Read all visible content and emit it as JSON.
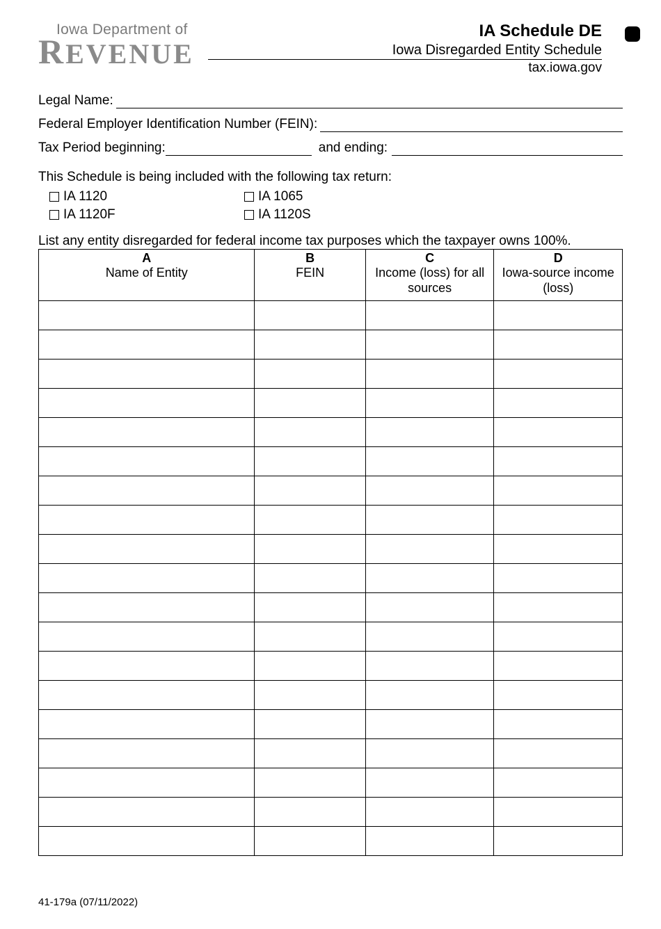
{
  "logo": {
    "line1": "Iowa Department of",
    "line2_r": "R",
    "line2_rest": "EVENUE"
  },
  "title": {
    "main": "IA Schedule DE",
    "sub": "Iowa Disregarded Entity Schedule",
    "url": "tax.iowa.gov"
  },
  "fields": {
    "legal_name_label": "Legal Name:",
    "fein_label": "Federal Employer Identification Number (FEIN):",
    "tax_period_begin_label": "Tax Period beginning:",
    "tax_period_end_label": " and ending:"
  },
  "schedule_intro": "This Schedule is being included with the following tax return:",
  "checkboxes": [
    {
      "label": "IA 1120"
    },
    {
      "label": "IA 1065"
    },
    {
      "label": "IA 1120F"
    },
    {
      "label": "IA 1120S"
    }
  ],
  "list_instruction": "List any entity disregarded for federal income tax purposes which the taxpayer owns 100%.",
  "table": {
    "columns": [
      {
        "letter": "A",
        "label": "Name of Entity"
      },
      {
        "letter": "B",
        "label": "FEIN"
      },
      {
        "letter": "C",
        "label": "Income (loss) for all sources"
      },
      {
        "letter": "D",
        "label": "Iowa-source income (loss)"
      }
    ],
    "row_count": 19
  },
  "footer": "41-179a (07/11/2022)"
}
